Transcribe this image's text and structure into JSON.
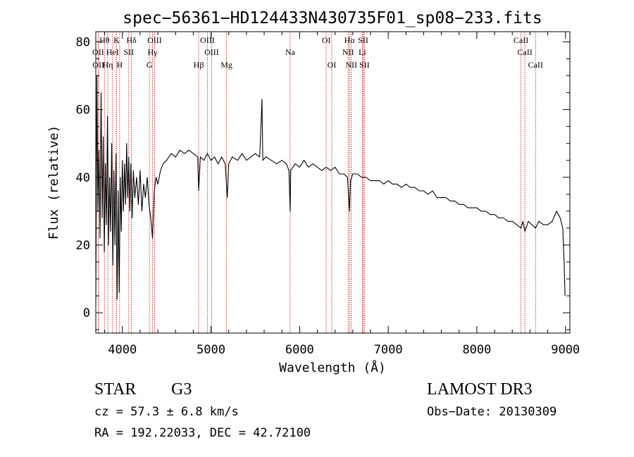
{
  "chart_data": {
    "type": "line",
    "title": "spec−56361−HD124433N430735F01_sp08−233.fits",
    "xlabel": "Wavelength (Å)",
    "ylabel": "Flux (relative)",
    "xlim": [
      3700,
      9050
    ],
    "ylim": [
      -6,
      83
    ],
    "x_ticks": [
      4000,
      5000,
      6000,
      7000,
      8000,
      9000
    ],
    "y_ticks": [
      0,
      20,
      40,
      60,
      80
    ],
    "grid": false,
    "series": [
      {
        "name": "flux",
        "points": [
          [
            3700,
            3
          ],
          [
            3712,
            70
          ],
          [
            3724,
            30
          ],
          [
            3736,
            48
          ],
          [
            3748,
            22
          ],
          [
            3760,
            65
          ],
          [
            3772,
            28
          ],
          [
            3784,
            52
          ],
          [
            3796,
            18
          ],
          [
            3808,
            44
          ],
          [
            3820,
            26
          ],
          [
            3832,
            58
          ],
          [
            3844,
            20
          ],
          [
            3856,
            40
          ],
          [
            3868,
            24
          ],
          [
            3880,
            50
          ],
          [
            3892,
            14
          ],
          [
            3904,
            42
          ],
          [
            3916,
            20
          ],
          [
            3928,
            47
          ],
          [
            3940,
            4
          ],
          [
            3952,
            36
          ],
          [
            3964,
            6
          ],
          [
            3976,
            40
          ],
          [
            3988,
            24
          ],
          [
            4000,
            45
          ],
          [
            4012,
            30
          ],
          [
            4024,
            44
          ],
          [
            4036,
            32
          ],
          [
            4048,
            50
          ],
          [
            4060,
            34
          ],
          [
            4072,
            46
          ],
          [
            4084,
            30
          ],
          [
            4096,
            44
          ],
          [
            4110,
            28
          ],
          [
            4124,
            42
          ],
          [
            4140,
            34
          ],
          [
            4160,
            40
          ],
          [
            4180,
            32
          ],
          [
            4200,
            42
          ],
          [
            4220,
            30
          ],
          [
            4240,
            38
          ],
          [
            4260,
            34
          ],
          [
            4280,
            40
          ],
          [
            4300,
            32
          ],
          [
            4320,
            28
          ],
          [
            4340,
            22
          ],
          [
            4360,
            36
          ],
          [
            4380,
            40
          ],
          [
            4400,
            38
          ],
          [
            4430,
            42
          ],
          [
            4460,
            44
          ],
          [
            4500,
            45
          ],
          [
            4550,
            47
          ],
          [
            4600,
            46
          ],
          [
            4650,
            48
          ],
          [
            4700,
            47
          ],
          [
            4750,
            48
          ],
          [
            4800,
            47
          ],
          [
            4850,
            46
          ],
          [
            4861,
            36
          ],
          [
            4880,
            46
          ],
          [
            4920,
            45
          ],
          [
            4960,
            47
          ],
          [
            5000,
            45
          ],
          [
            5040,
            46
          ],
          [
            5080,
            44
          ],
          [
            5120,
            46
          ],
          [
            5160,
            44
          ],
          [
            5175,
            38
          ],
          [
            5183,
            34
          ],
          [
            5200,
            44
          ],
          [
            5240,
            46
          ],
          [
            5300,
            45
          ],
          [
            5350,
            47
          ],
          [
            5400,
            45
          ],
          [
            5450,
            46
          ],
          [
            5500,
            47
          ],
          [
            5550,
            46
          ],
          [
            5575,
            63
          ],
          [
            5585,
            45
          ],
          [
            5620,
            46
          ],
          [
            5680,
            45
          ],
          [
            5740,
            44
          ],
          [
            5800,
            45
          ],
          [
            5850,
            44
          ],
          [
            5880,
            42
          ],
          [
            5893,
            30
          ],
          [
            5900,
            42
          ],
          [
            5950,
            44
          ],
          [
            6000,
            43
          ],
          [
            6050,
            45
          ],
          [
            6100,
            43
          ],
          [
            6150,
            44
          ],
          [
            6200,
            43
          ],
          [
            6250,
            42
          ],
          [
            6300,
            43
          ],
          [
            6350,
            42
          ],
          [
            6400,
            43
          ],
          [
            6450,
            41
          ],
          [
            6500,
            41
          ],
          [
            6540,
            40
          ],
          [
            6563,
            30
          ],
          [
            6575,
            39
          ],
          [
            6600,
            41
          ],
          [
            6650,
            41
          ],
          [
            6700,
            40
          ],
          [
            6750,
            40
          ],
          [
            6800,
            39
          ],
          [
            6850,
            39
          ],
          [
            6900,
            39
          ],
          [
            6950,
            38
          ],
          [
            7000,
            39
          ],
          [
            7050,
            38
          ],
          [
            7100,
            38
          ],
          [
            7150,
            37
          ],
          [
            7200,
            38
          ],
          [
            7250,
            37
          ],
          [
            7300,
            37
          ],
          [
            7350,
            36
          ],
          [
            7400,
            36
          ],
          [
            7450,
            35
          ],
          [
            7500,
            36
          ],
          [
            7550,
            34
          ],
          [
            7600,
            34
          ],
          [
            7650,
            34
          ],
          [
            7700,
            33
          ],
          [
            7750,
            33
          ],
          [
            7800,
            32
          ],
          [
            7850,
            32
          ],
          [
            7900,
            31
          ],
          [
            7950,
            31
          ],
          [
            8000,
            31
          ],
          [
            8050,
            30
          ],
          [
            8100,
            30
          ],
          [
            8150,
            29
          ],
          [
            8200,
            29
          ],
          [
            8250,
            28
          ],
          [
            8300,
            28
          ],
          [
            8350,
            27
          ],
          [
            8400,
            27
          ],
          [
            8450,
            26
          ],
          [
            8498,
            25
          ],
          [
            8520,
            27
          ],
          [
            8542,
            24
          ],
          [
            8580,
            27
          ],
          [
            8620,
            26
          ],
          [
            8662,
            25
          ],
          [
            8700,
            27
          ],
          [
            8750,
            26
          ],
          [
            8800,
            26
          ],
          [
            8850,
            27
          ],
          [
            8900,
            30
          ],
          [
            8940,
            28
          ],
          [
            8970,
            25
          ],
          [
            8985,
            15
          ],
          [
            8995,
            5
          ]
        ]
      }
    ],
    "line_markers": [
      {
        "label": "Hθ",
        "wavelength": 3798,
        "row": 0
      },
      {
        "label": "K",
        "wavelength": 3934,
        "row": 0
      },
      {
        "label": "Hδ",
        "wavelength": 4102,
        "row": 0
      },
      {
        "label": "OIII",
        "wavelength": 4363,
        "row": 0
      },
      {
        "label": "OIII",
        "wavelength": 4959,
        "row": 0
      },
      {
        "label": "OI",
        "wavelength": 6300,
        "row": 0
      },
      {
        "label": "Hα",
        "wavelength": 6563,
        "row": 0
      },
      {
        "label": "SII",
        "wavelength": 6717,
        "row": 0
      },
      {
        "label": "CaII",
        "wavelength": 8498,
        "row": 0
      },
      {
        "label": "OII",
        "wavelength": 3727,
        "row": 1
      },
      {
        "label": "HeI",
        "wavelength": 3889,
        "row": 1
      },
      {
        "label": "SII",
        "wavelength": 4072,
        "row": 1
      },
      {
        "label": "Hγ",
        "wavelength": 4340,
        "row": 1
      },
      {
        "label": "OIII",
        "wavelength": 5007,
        "row": 1
      },
      {
        "label": "Na",
        "wavelength": 5893,
        "row": 1
      },
      {
        "label": "NII",
        "wavelength": 6548,
        "row": 1
      },
      {
        "label": "Li",
        "wavelength": 6708,
        "row": 1
      },
      {
        "label": "CaII",
        "wavelength": 8542,
        "row": 1
      },
      {
        "label": "OII",
        "wavelength": 3729,
        "row": 2
      },
      {
        "label": "Hη",
        "wavelength": 3835,
        "row": 2
      },
      {
        "label": "H",
        "wavelength": 3969,
        "row": 2
      },
      {
        "label": "G",
        "wavelength": 4305,
        "row": 2
      },
      {
        "label": "Hβ",
        "wavelength": 4861,
        "row": 2
      },
      {
        "label": "Mg",
        "wavelength": 5175,
        "row": 2
      },
      {
        "label": "OI",
        "wavelength": 6363,
        "row": 2
      },
      {
        "label": "NII",
        "wavelength": 6583,
        "row": 2
      },
      {
        "label": "SII",
        "wavelength": 6731,
        "row": 2
      },
      {
        "label": "CaII",
        "wavelength": 8662,
        "row": 2
      }
    ],
    "line_marker_color": "#cc0000",
    "line_color": "#000000"
  },
  "info": {
    "object_class": "STAR",
    "subclass": "G3",
    "survey": "LAMOST DR3",
    "cz": "cz = 57.3 ± 6.8 km/s",
    "obs_date": "Obs−Date: 20130309",
    "coords": "RA = 192.22033, DEC =  42.72100"
  }
}
